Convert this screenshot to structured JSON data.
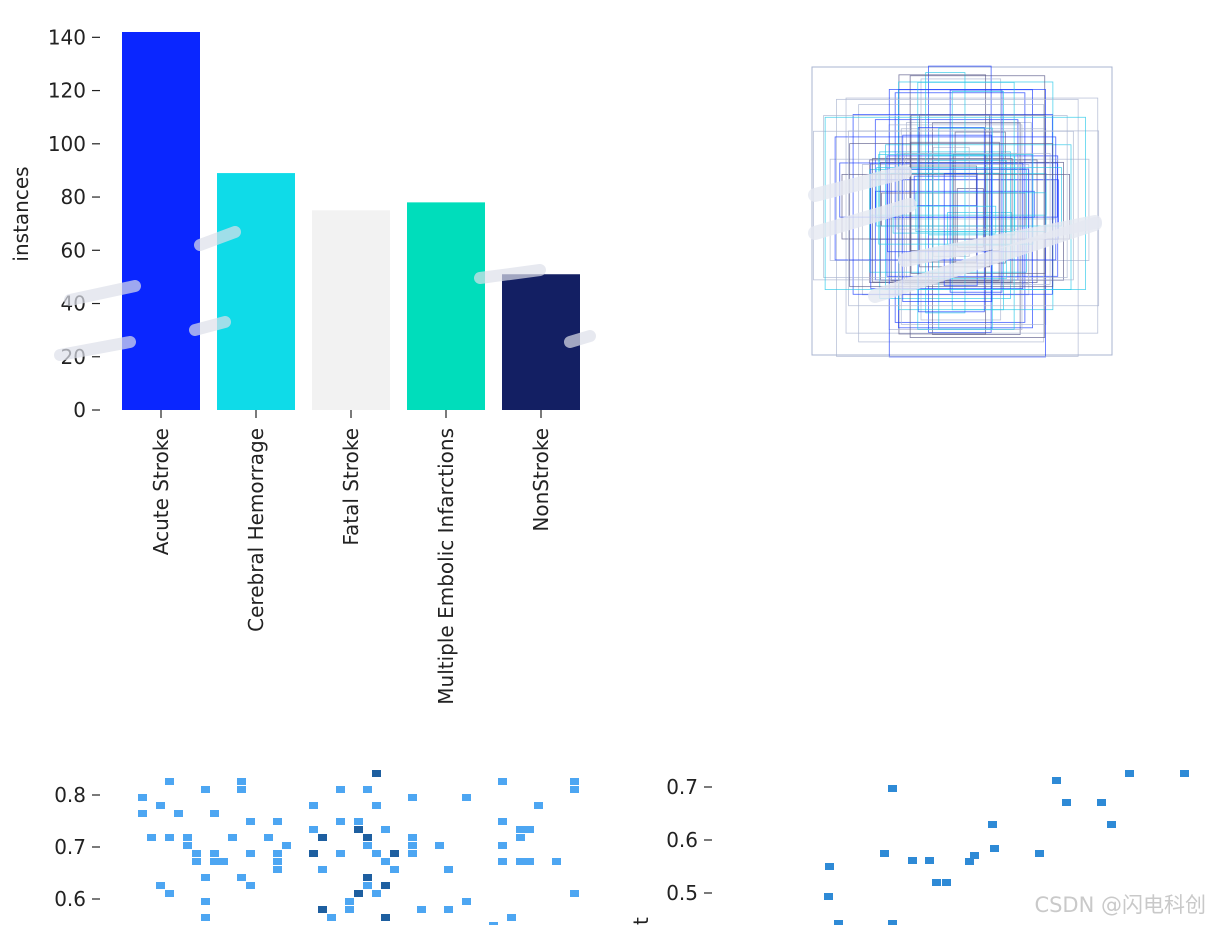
{
  "chart_data": [
    {
      "type": "bar",
      "ylabel": "instances",
      "categories": [
        "Acute Stroke",
        "Cerebral Hemorrage",
        "Fatal Stroke",
        "Multiple Embolic Infarctions",
        "NonStroke"
      ],
      "values": [
        142,
        89,
        75,
        78,
        51
      ],
      "colors": [
        "#0a26ff",
        "#0fdbe8",
        "#f2f2f2",
        "#00ddbb",
        "#131f63"
      ],
      "yticks": [
        0,
        20,
        40,
        60,
        80,
        100,
        120,
        140
      ],
      "ylim": [
        0,
        142
      ],
      "grid": false
    },
    {
      "type": "other",
      "description_colors": [
        "#1a3cff",
        "#28c8e8",
        "#5a5a8a",
        "#aab4d0"
      ]
    },
    {
      "type": "heatmap",
      "yticks": [
        "0.6",
        "0.7",
        "0.8"
      ],
      "ylim": [
        0.55,
        0.85
      ],
      "color": "#4da6f2"
    },
    {
      "type": "heatmap",
      "yticks": [
        "0.5",
        "0.6",
        "0.7"
      ],
      "ylim": [
        0.45,
        0.73
      ],
      "color": "#2e8ad6"
    }
  ],
  "watermark": "CSDN @闪电科创"
}
